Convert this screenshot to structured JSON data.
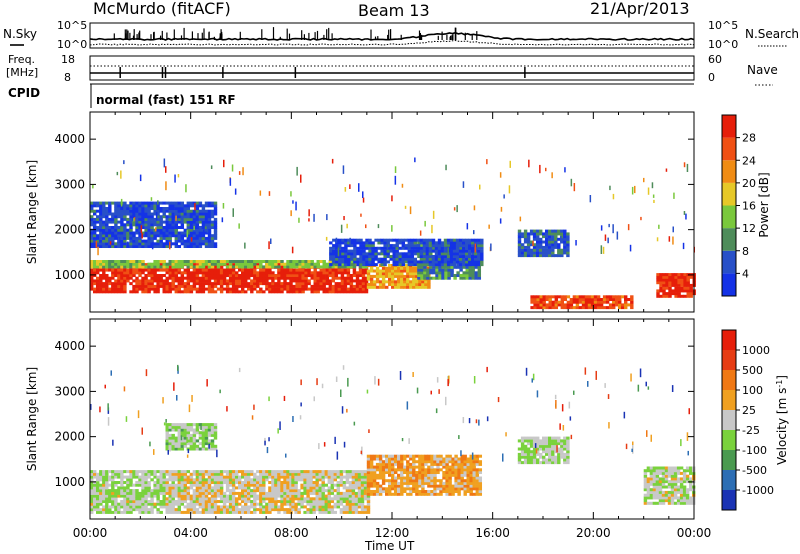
{
  "header": {
    "site": "McMurdo (fitACF)",
    "beam": "Beam 13",
    "date": "21/Apr/2013"
  },
  "panels": {
    "nsky_label": "N.Sky",
    "nsearch_label": "N.Search",
    "noise_left_ticks": [
      "10^5",
      "10^0"
    ],
    "noise_right_ticks": [
      "10^5",
      "10^0"
    ],
    "freq_label_1": "Freq.",
    "freq_label_2": "[MHz]",
    "freq_ticks": [
      "18",
      "8"
    ],
    "nave_label": "Nave",
    "nave_ticks": [
      "60",
      "0"
    ],
    "cpid_label": "CPID",
    "cpid_text": "normal (fast) 151 RF"
  },
  "time_axis": {
    "label": "Time UT",
    "ticks": [
      "00:00",
      "04:00",
      "08:00",
      "12:00",
      "16:00",
      "20:00",
      "00:00"
    ]
  },
  "colors": {
    "power_scale": [
      "#1432e6",
      "#2850c8",
      "#4e8c5a",
      "#7ac83c",
      "#e6c828",
      "#f08c14",
      "#f05014",
      "#e61e0a"
    ],
    "velocity_scale": [
      "#1a33b4",
      "#2c6eb4",
      "#4a9a50",
      "#7ad23c",
      "#c8c8c8",
      "#f0a020",
      "#f07814",
      "#e63c14",
      "#e61e0a"
    ]
  },
  "chart_data": [
    {
      "type": "heatmap",
      "title": "Power",
      "xlabel": "Time UT",
      "ylabel": "Slant Range [km]",
      "yticks": [
        "1000",
        "2000",
        "3000",
        "4000"
      ],
      "ylim": [
        180,
        4600
      ],
      "xlim_hours": [
        0,
        24
      ],
      "colorbar": {
        "label": "Power [dB]",
        "ticks": [
          "4",
          "8",
          "12",
          "16",
          "20",
          "24",
          "28"
        ]
      },
      "regions": [
        {
          "t": [
            0,
            11
          ],
          "range": [
            600,
            1250
          ],
          "value": 28
        },
        {
          "t": [
            0,
            11
          ],
          "range": [
            1150,
            1300
          ],
          "value": 14
        },
        {
          "t": [
            11,
            13.5
          ],
          "range": [
            700,
            1200
          ],
          "value": 20
        },
        {
          "t": [
            13,
            15.5
          ],
          "range": [
            900,
            1700
          ],
          "value": 10
        },
        {
          "t": [
            0,
            5
          ],
          "range": [
            1600,
            2600
          ],
          "value": 6
        },
        {
          "t": [
            9.5,
            15.5
          ],
          "range": [
            1200,
            1800
          ],
          "value": 6
        },
        {
          "t": [
            17,
            19
          ],
          "range": [
            1400,
            2000
          ],
          "value": 8
        },
        {
          "t": [
            22.5,
            24
          ],
          "range": [
            500,
            1000
          ],
          "value": 28
        },
        {
          "t": [
            17.5,
            21.5
          ],
          "range": [
            250,
            500
          ],
          "value": 26
        }
      ]
    },
    {
      "type": "heatmap",
      "title": "Velocity",
      "xlabel": "Time UT",
      "ylabel": "Slant Range [km]",
      "yticks": [
        "1000",
        "2000",
        "3000",
        "4000"
      ],
      "ylim": [
        180,
        4600
      ],
      "xlim_hours": [
        0,
        24
      ],
      "colorbar": {
        "label": "Velocity [m s-1]",
        "ticks": [
          "1000",
          "500",
          "100",
          "25",
          "-25",
          "-100",
          "-500",
          "-1000"
        ]
      },
      "regions": [
        {
          "t": [
            0,
            3
          ],
          "range": [
            300,
            1250
          ],
          "value": -100
        },
        {
          "t": [
            3,
            8
          ],
          "range": [
            300,
            1250
          ],
          "value": 50
        },
        {
          "t": [
            8,
            11
          ],
          "range": [
            300,
            1250
          ],
          "value": 0
        },
        {
          "t": [
            11,
            15.5
          ],
          "range": [
            700,
            1600
          ],
          "value": 300
        },
        {
          "t": [
            3,
            5
          ],
          "range": [
            1700,
            2300
          ],
          "value": -200
        },
        {
          "t": [
            17,
            19
          ],
          "range": [
            1400,
            2000
          ],
          "value": -150
        },
        {
          "t": [
            22,
            24
          ],
          "range": [
            500,
            1300
          ],
          "value": -60
        }
      ]
    }
  ]
}
